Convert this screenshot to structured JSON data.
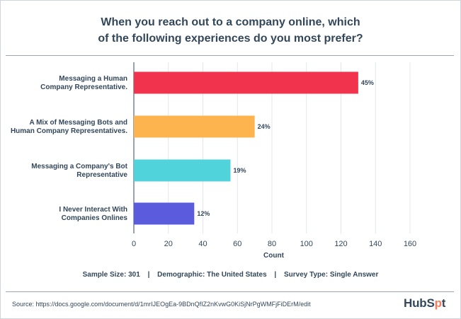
{
  "chart_data": {
    "type": "bar",
    "orientation": "horizontal",
    "title_lines": [
      "When you reach out to a company online, which",
      "of the following experiences do you most prefer?"
    ],
    "categories": [
      [
        "Messaging a Human",
        "Company Representative."
      ],
      [
        "A Mix of Messaging  Bots and",
        "Human Company Representatives."
      ],
      [
        "Messaging a Company's Bot",
        "Representative"
      ],
      [
        "I Never Interact With",
        "Companies Onlines"
      ]
    ],
    "values": [
      130,
      70,
      56,
      35
    ],
    "value_labels": [
      "45%",
      "24%",
      "19%",
      "12%"
    ],
    "colors": [
      "#f2334d",
      "#fdb44e",
      "#51d3db",
      "#5b5bde"
    ],
    "xlabel": "Count",
    "xlim": [
      0,
      160
    ],
    "xticks": [
      0,
      20,
      40,
      60,
      80,
      100,
      120,
      140,
      160
    ],
    "grid": true
  },
  "meta": {
    "sample_size": "Sample Size: 301",
    "demographic": "Demographic: The United States",
    "survey_type": "Survey Type: Single Answer",
    "separator": "|"
  },
  "source": "Source: https://docs.google.com/document/d/1mrIJEOgEa-9BDnQfIZ2nKvwG0KiSjNrPgWMFjFiDErM/edit",
  "logo": {
    "prefix": "HubS",
    "sprocket": "p",
    "suffix": "t",
    "accent": "#ff7a59"
  }
}
